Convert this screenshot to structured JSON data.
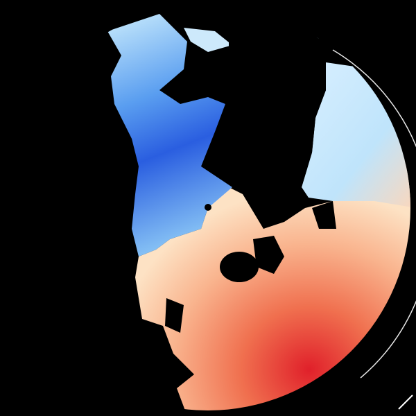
{
  "image": {
    "kind": "doppler-radar-velocity-sweep",
    "background_color": "#000000",
    "palette": {
      "strong_inbound": "#2a5ee0",
      "inbound": "#5a9ef0",
      "weak_inbound": "#bfe4fb",
      "near_zero": "#fde2c4",
      "weak_outbound": "#f9b48e",
      "outbound": "#f0704f",
      "strong_outbound": "#e0202a",
      "folded": "#c0102a"
    }
  }
}
